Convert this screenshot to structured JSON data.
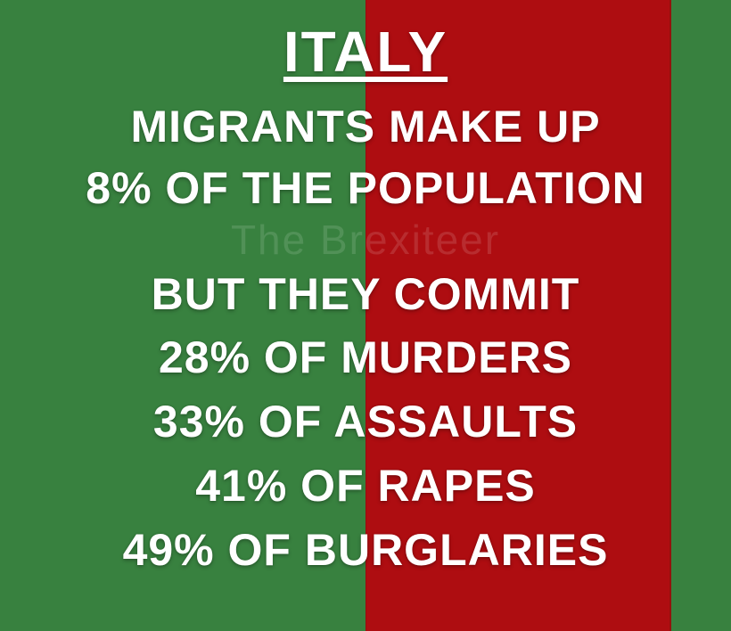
{
  "colors": {
    "background_green": "#38813f",
    "panel_red": "#ae0d11",
    "text": "#ffffff"
  },
  "title": {
    "text": "ITALY"
  },
  "lines": [
    {
      "text": "MIGRANTS MAKE UP"
    },
    {
      "text": "8% OF THE POPULATION"
    },
    {
      "text": "BUT THEY COMMIT"
    },
    {
      "text": "28% OF MURDERS"
    },
    {
      "text": "33% OF ASSAULTS"
    },
    {
      "text": "41% OF RAPES"
    },
    {
      "text": "49% OF BURGLARIES"
    }
  ],
  "watermark": {
    "text": "The Brexiteer"
  },
  "stats": {
    "country": "Italy",
    "migrant_population_share": "8%",
    "murders_share": "28%",
    "assaults_share": "33%",
    "rapes_share": "41%",
    "burglaries_share": "49%"
  }
}
